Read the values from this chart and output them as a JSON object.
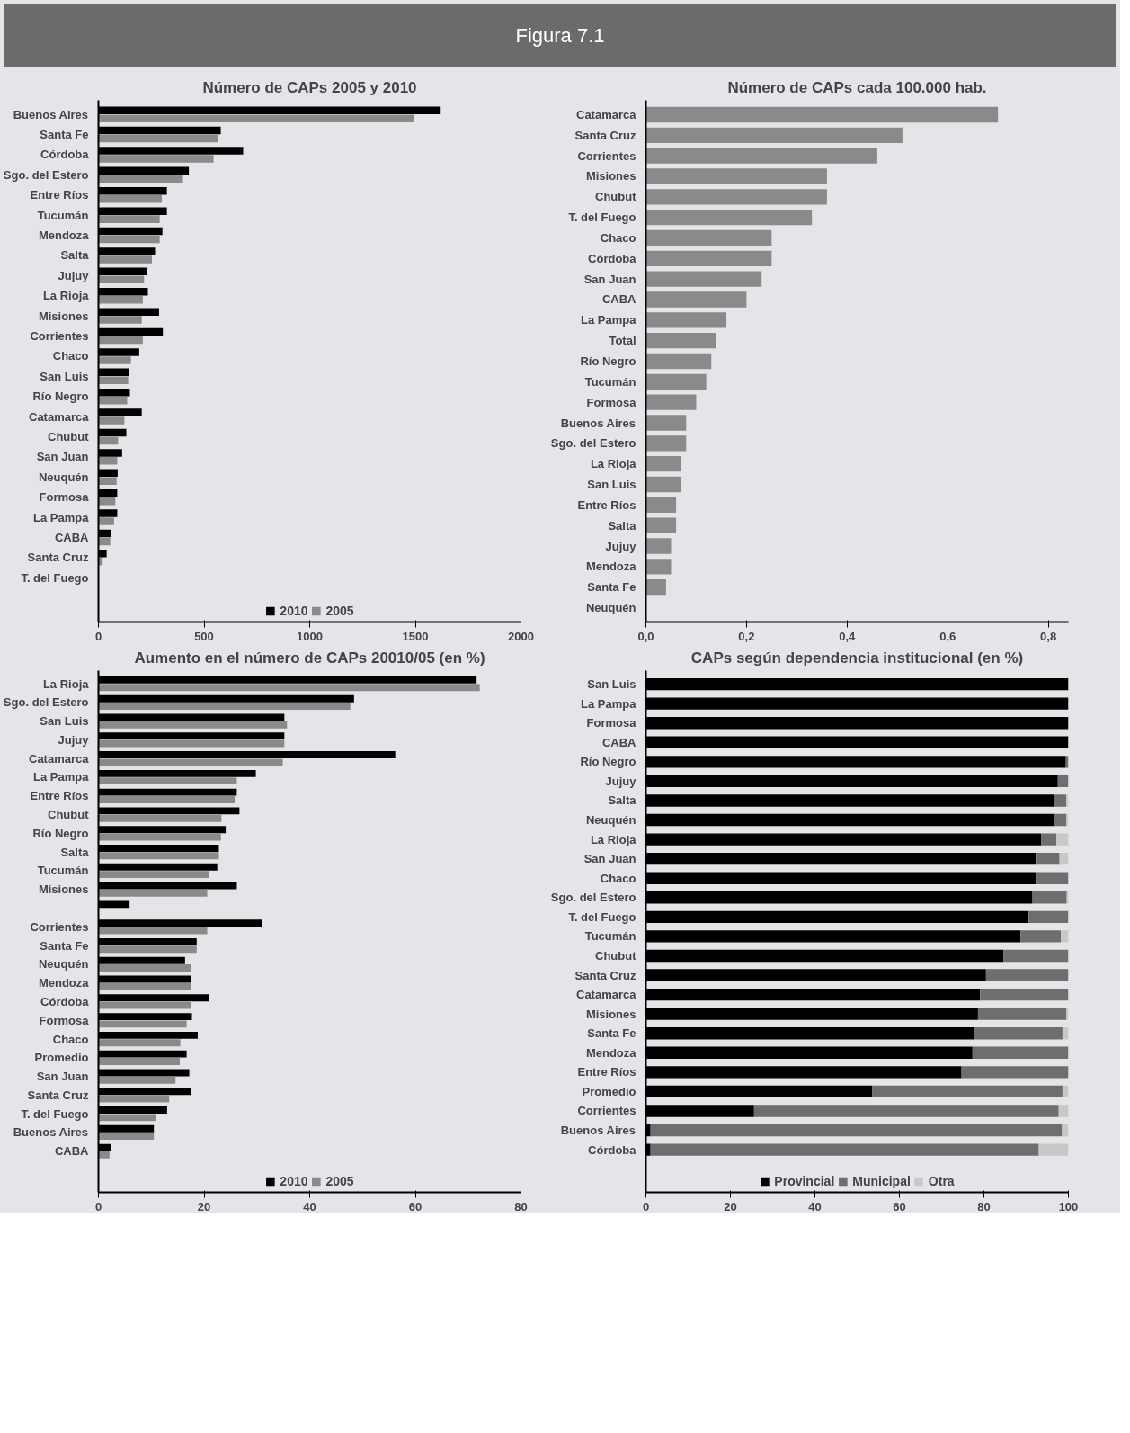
{
  "chart_data": [
    {
      "type": "bar",
      "orientation": "horizontal",
      "title": "Número de CAPs 2005 y 2010",
      "annotations": [
        "Figura 7.1"
      ],
      "categories": [
        "Buenos Aires",
        "Santa Fe",
        "Córdoba",
        "Sgo. del Estero",
        "Entre Ríos",
        "Tucumán",
        "Mendoza",
        "Salta",
        "Jujuy",
        "La Rioja",
        "Misiones",
        "Corrientes",
        "Chaco",
        "San Luis",
        "Río Negro",
        "Catamarca",
        "Chubut",
        "San Juan",
        "Neuquén",
        "Formosa",
        "La Pampa",
        "CABA",
        "Santa Cruz",
        "T. del Fuego"
      ],
      "series": [
        {
          "name": "2010",
          "color": "#000000",
          "values": [
            1620,
            579,
            685,
            428,
            324,
            324,
            303,
            268,
            231,
            234,
            287,
            305,
            193,
            145,
            149,
            205,
            132,
            112,
            91,
            89,
            89,
            58,
            39,
            null
          ]
        },
        {
          "name": "2005",
          "color": "#8a8a8a",
          "values": [
            1495,
            564,
            545,
            400,
            300,
            290,
            290,
            253,
            216,
            210,
            205,
            210,
            154,
            141,
            136,
            123,
            93,
            89,
            86,
            80,
            74,
            56,
            20,
            null
          ]
        }
      ],
      "xlim": [
        0,
        2000
      ],
      "xticks": [
        0,
        500,
        1000,
        1500,
        2000
      ],
      "legend": "bottom"
    },
    {
      "type": "bar",
      "orientation": "horizontal",
      "title": "Número de CAPs cada 100.000 hab.",
      "categories": [
        "Catamarca",
        "Santa Cruz",
        "Corrientes",
        "Misiones",
        "Chubut",
        "T. del Fuego",
        "Chaco",
        "Córdoba",
        "San Juan",
        "CABA",
        "La Pampa",
        "Total",
        "Río Negro",
        "Tucumán",
        "Formosa",
        "Buenos Aires",
        "Sgo. del Estero",
        "La Rioja",
        "San Luis",
        "Entre Ríos",
        "Salta",
        "Jujuy",
        "Mendoza",
        "Santa Fe",
        "Neuquén"
      ],
      "series": [
        {
          "color": "#8a8a8a",
          "values": [
            0.7,
            0.51,
            0.46,
            0.36,
            0.36,
            0.33,
            0.25,
            0.25,
            0.23,
            0.2,
            0.16,
            0.14,
            0.13,
            0.12,
            0.1,
            0.08,
            0.08,
            0.07,
            0.07,
            0.06,
            0.06,
            0.05,
            0.05,
            0.04,
            null
          ]
        }
      ],
      "xlim": [
        0,
        0.84
      ],
      "xticks": [
        {
          "value": 0,
          "label": "0,0"
        },
        {
          "value": 0.2,
          "label": "0,2"
        },
        {
          "value": 0.4,
          "label": "0,4"
        },
        {
          "value": 0.6,
          "label": "0,6"
        },
        {
          "value": 0.8,
          "label": "0,8"
        }
      ]
    },
    {
      "type": "bar",
      "orientation": "horizontal",
      "title": "Aumento en el número de CAPs 20010/05 (en %)",
      "categories": [
        "La Rioja",
        "Sgo. del Estero",
        "San Luis",
        "Jujuy",
        "Catamarca",
        "La Pampa",
        "Entre Ríos",
        "Chubut",
        "Río Negro",
        "Salta",
        "Tucumán",
        "Misiones",
        null,
        "Corrientes",
        "Santa Fe",
        "Neuquén",
        "Mendoza",
        "Córdoba",
        "Formosa",
        "Chaco",
        "Promedio",
        "San Juan",
        "Santa Cruz",
        "T. del Fuego",
        "Buenos Aires",
        "CABA"
      ],
      "series": [
        {
          "name": "2010",
          "color": "#000000",
          "values": [
            71.6,
            48.4,
            35.2,
            35.2,
            56.2,
            29.8,
            26.2,
            26.7,
            24.1,
            22.8,
            22.5,
            26.2,
            5.9,
            30.9,
            18.6,
            16.4,
            17.5,
            20.9,
            17.7,
            18.8,
            16.7,
            17.2,
            17.5,
            13.0,
            10.5,
            2.3
          ]
        },
        {
          "name": "2005",
          "color": "#8a8a8a",
          "values": [
            72.2,
            47.7,
            35.7,
            35.2,
            34.9,
            26.2,
            25.8,
            23.3,
            23.2,
            22.8,
            20.9,
            20.6,
            null,
            20.6,
            18.6,
            17.6,
            17.5,
            17.5,
            16.7,
            15.5,
            15.4,
            14.6,
            13.4,
            10.9,
            10.5,
            2.1
          ]
        }
      ],
      "xlim": [
        0,
        80
      ],
      "xticks": [
        0,
        20,
        40,
        60,
        80
      ],
      "legend": "bottom"
    },
    {
      "type": "bar",
      "orientation": "horizontal",
      "stacked": true,
      "title": "CAPs según dependencia institucional (en %)",
      "categories": [
        "San Luis",
        "La Pampa",
        "Formosa",
        "CABA",
        "Río Negro",
        "Jujuy",
        "Salta",
        "Neuquén",
        "La Rioja",
        "San Juan",
        "Chaco",
        "Sgo. del Estero",
        "T. del Fuego",
        "Tucumán",
        "Chubut",
        "Santa Cruz",
        "Catamarca",
        "Misiones",
        "Santa Fe",
        "Mendoza",
        "Entre Ríos",
        "Promedio",
        "Corrientes",
        "Buenos Aires",
        "Córdoba"
      ],
      "series": [
        {
          "name": "Provincial",
          "color": "#000000",
          "values": [
            100,
            100,
            100,
            100,
            99.4,
            97.5,
            96.5,
            96.5,
            93.6,
            92.3,
            92.3,
            91.5,
            90.6,
            88.7,
            84.6,
            80.5,
            79.1,
            78.6,
            77.7,
            77.3,
            74.7,
            53.6,
            25.6,
            1.1,
            1.1
          ]
        },
        {
          "name": "Municipal",
          "color": "#6e6e6e",
          "values": [
            0,
            0,
            0,
            0,
            0.6,
            2.5,
            3.0,
            3.0,
            3.6,
            5.6,
            7.7,
            8.1,
            9.4,
            9.5,
            15.4,
            19.5,
            20.9,
            20.9,
            20.9,
            22.7,
            25.3,
            45.0,
            72.1,
            97.4,
            91.9
          ]
        },
        {
          "name": "Otra",
          "color": "#c8c8c8",
          "values": [
            0,
            0,
            0,
            0,
            0,
            0,
            0.5,
            0.5,
            2.8,
            2.1,
            0,
            0.4,
            0,
            1.8,
            0,
            0,
            0,
            0.5,
            1.4,
            0,
            0,
            1.4,
            2.3,
            1.5,
            7.0
          ]
        }
      ],
      "xlim": [
        0,
        100
      ],
      "xticks": [
        0,
        20,
        40,
        60,
        80,
        100
      ],
      "legend": "bottom"
    }
  ]
}
